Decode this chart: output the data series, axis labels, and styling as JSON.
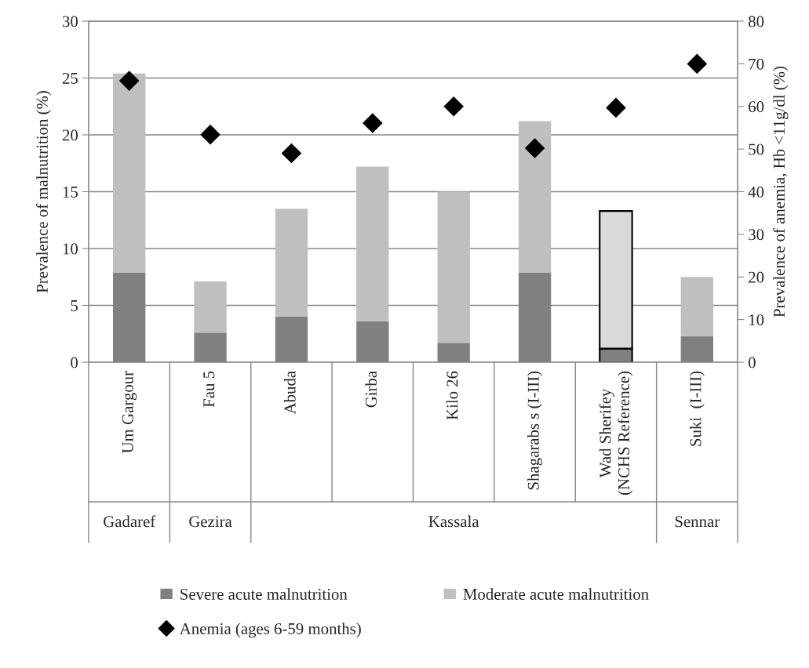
{
  "chart_data": {
    "type": "bar",
    "stacked": true,
    "categories": [
      "Um Gargour",
      "Fau 5",
      "Abuda",
      "Girba",
      "Kilo 26",
      "Shagarabs s (I-III)",
      "Wad Sherifey\n(NCHS Reference)",
      "Suki  (I-III)"
    ],
    "series": [
      {
        "name": "Severe acute malnutrition",
        "color": "#808080",
        "values": [
          7.9,
          2.6,
          4.0,
          3.6,
          1.7,
          7.9,
          1.2,
          2.3
        ]
      },
      {
        "name": "Moderate acute malnutrition",
        "color": "#bfbfbf",
        "colors": [
          "#bfbfbf",
          "#bfbfbf",
          "#bfbfbf",
          "#bfbfbf",
          "#bfbfbf",
          "#bfbfbf",
          "#d9d9d9",
          "#bfbfbf"
        ],
        "values": [
          17.5,
          4.5,
          9.5,
          13.6,
          13.3,
          13.3,
          12.1,
          5.2
        ]
      },
      {
        "name": "Anemia (ages 6-59 months)",
        "type": "scatter",
        "axis": "y2",
        "marker": "diamond",
        "color": "#000000",
        "values": [
          66,
          53.4,
          49,
          56.1,
          60,
          50.2,
          59.7,
          70
        ]
      }
    ],
    "ylabel": "Prevalence of malnutrition (%)",
    "y2label": "Prevalence of anemia, Hb <11g/dl (%)",
    "ylim": [
      0,
      30
    ],
    "yticks": [
      0,
      5,
      10,
      15,
      20,
      25,
      30
    ],
    "y2lim": [
      0,
      80
    ],
    "y2ticks": [
      0,
      10,
      20,
      30,
      40,
      50,
      60,
      70,
      80
    ],
    "annotations": [
      "Gadaref",
      "Gezira",
      "Kassala",
      "Sennar"
    ],
    "grid": "y",
    "legend": "bottom"
  }
}
